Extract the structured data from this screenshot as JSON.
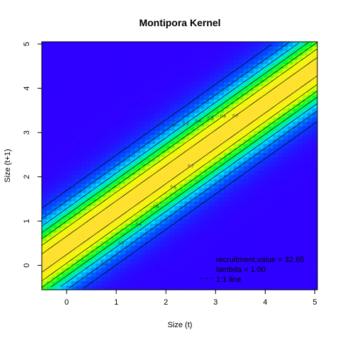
{
  "chart_data": {
    "type": "heatmap",
    "title": "Montipora Kernel",
    "xlabel": "Size (t)",
    "ylabel": "Size (t+1)",
    "xlim": [
      -0.5,
      5.05
    ],
    "ylim": [
      -0.55,
      5.05
    ],
    "x_ticks": [
      0,
      1,
      2,
      3,
      4,
      5
    ],
    "y_ticks": [
      0,
      1,
      2,
      3,
      4,
      5
    ],
    "colorscale": [
      "#2f00ff",
      "#0050ff",
      "#00e0ff",
      "#00ff20",
      "#f0ff00",
      "#ffe030"
    ],
    "contour_levels": [
      0.1,
      0.2,
      0.3,
      0.4,
      0.5,
      0.6,
      0.7
    ],
    "contour_labels": [
      "0.1",
      "0.2",
      "0.3",
      "0.4",
      "0.5",
      "0.6",
      "0.7"
    ],
    "annotations": [
      "recruitment.value = 32.65",
      "lambda = 1.00",
      "1:1 line"
    ]
  }
}
